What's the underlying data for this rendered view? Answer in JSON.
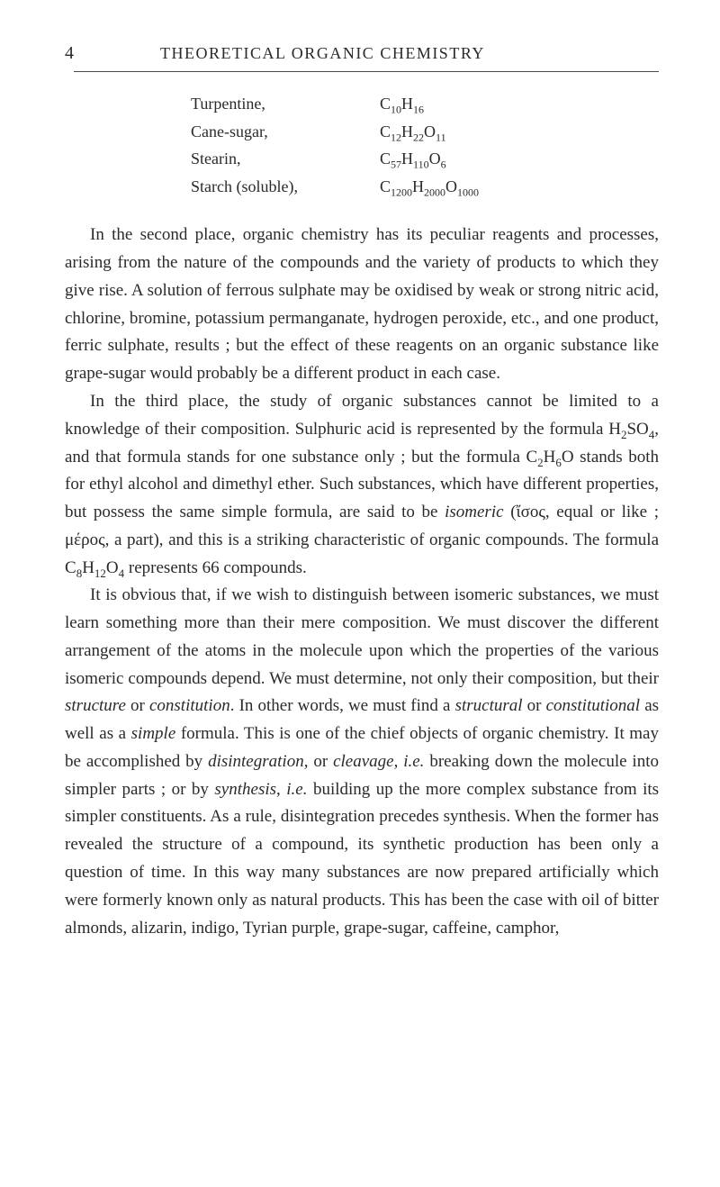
{
  "header": {
    "page_number": "4",
    "title": "THEORETICAL ORGANIC CHEMISTRY"
  },
  "compounds": [
    {
      "name": "Turpentine,",
      "formula_html": "C<sub>10</sub>H<sub>16</sub>"
    },
    {
      "name": "Cane-sugar,",
      "formula_html": "C<sub>12</sub>H<sub>22</sub>O<sub>11</sub>"
    },
    {
      "name": "Stearin,",
      "formula_html": "C<sub>57</sub>H<sub>110</sub>O<sub>6</sub>"
    },
    {
      "name": "Starch (soluble),",
      "formula_html": "C<sub>1200</sub>H<sub>2000</sub>O<sub>1000</sub>"
    }
  ],
  "paragraphs": {
    "p1": "In the second place, organic chemistry has its peculiar reagents and processes, arising from the nature of the compounds and the variety of products to which they give rise. A solution of ferrous sulphate may be oxidised by weak or strong nitric acid, chlorine, bromine, potassium permanganate, hydrogen peroxide, etc., and one product, ferric sulphate, results ; but the effect of these reagents on an organic substance like grape-sugar would probably be a different product in each case.",
    "p2_html": "In the third place, the study of organic substances cannot be limited to a knowledge of their composition. Sulphuric acid is represented by the formula H<sub>2</sub>SO<sub>4</sub>, and that formula stands for one substance only ; but the formula C<sub>2</sub>H<sub>6</sub>O stands both for ethyl alcohol and dimethyl ether. Such substances, which have different properties, but possess the same simple formula, are said to be <em class=\"italic\">isomeric</em> (ἴσος, equal or like ; μέρος, a part), and this is a striking characteristic of organic compounds. The formula C<sub>8</sub>H<sub>12</sub>O<sub>4</sub> represents 66 compounds.",
    "p3_html": "It is obvious that, if we wish to distinguish between isomeric substances, we must learn something more than their mere com­position. We must discover the different arrangement of the atoms in the molecule upon which the properties of the various isomeric compounds depend. We must determine, not only their composition, but their <em class=\"italic\">structure</em> or <em class=\"italic\">constitution</em>. In other words, we must find a <em class=\"italic\">structural</em> or <em class=\"italic\">constitutional</em> as well as a <em class=\"italic\">simple</em> formula. This is one of the chief objects of organic chemistry. It may be accomplished by <em class=\"italic\">disintegration</em>, or <em class=\"italic\">cleavage</em>, <em class=\"italic\">i.e.</em> breaking down the molecule into simpler parts ; or by <em class=\"italic\">synthesis</em>, <em class=\"italic\">i.e.</em> building up the more complex substance from its simpler constituents. As a rule, disintegration precedes synthesis. When the former has revealed the structure of a compound, its synthetic production has been only a question of time. In this way many substances are now prepared artificially which were formerly known only as natural products. This has been the case with oil of bitter almonds, alizarin, indigo, Tyrian purple, grape-sugar, caffeine, camphor,"
  }
}
